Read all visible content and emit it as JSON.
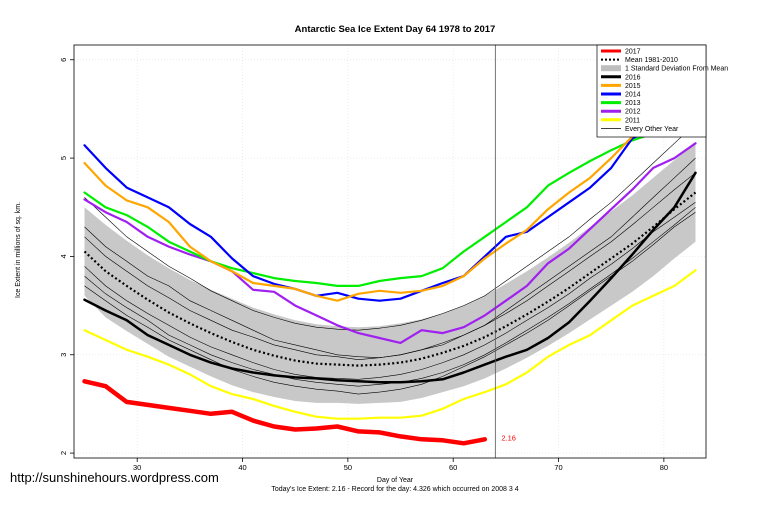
{
  "credit": "http://sunshinehours.wordpress.com",
  "chart_data": {
    "type": "line",
    "title": "Antarctic Sea Ice Extent Day 64 1978 to 2017",
    "xlabel": "Day of Year",
    "ylabel": "Ice Extent in millions of sq. km.",
    "footer": "Today's Ice Extent: 2.16  - Record for the day: 4.326 which occurred on 2008 3 4",
    "xlim": [
      24,
      84
    ],
    "ylim": [
      1.95,
      6.15
    ],
    "xticks": [
      30,
      40,
      50,
      60,
      70,
      80
    ],
    "yticks": [
      2,
      3,
      4,
      5,
      6
    ],
    "grid": true,
    "vline_x": 64,
    "end_label": "2.16",
    "legend_position": "top-right",
    "legend": [
      {
        "label": "2017",
        "color": "#ff0000",
        "style": "thick"
      },
      {
        "label": "Mean 1981-2010",
        "color": "#000000",
        "style": "dotted"
      },
      {
        "label": "1 Standard Deviation From Mean",
        "color": "#bebebe",
        "style": "band"
      },
      {
        "label": "2016",
        "color": "#000000",
        "style": "thick"
      },
      {
        "label": "2015",
        "color": "#ffa500",
        "style": "thick"
      },
      {
        "label": "2014",
        "color": "#0000ff",
        "style": "thick"
      },
      {
        "label": "2013",
        "color": "#00ee00",
        "style": "thick"
      },
      {
        "label": "2012",
        "color": "#a020f0",
        "style": "thick"
      },
      {
        "label": "2011",
        "color": "#ffff00",
        "style": "thick"
      },
      {
        "label": "Every Other Year",
        "color": "#000000",
        "style": "thin"
      }
    ],
    "x": [
      25,
      27,
      29,
      31,
      33,
      35,
      37,
      39,
      41,
      43,
      45,
      47,
      49,
      51,
      53,
      55,
      57,
      59,
      61,
      63,
      65,
      67,
      69,
      71,
      73,
      75,
      77,
      79,
      81,
      83
    ],
    "mean": [
      4.05,
      3.85,
      3.7,
      3.56,
      3.43,
      3.32,
      3.22,
      3.13,
      3.05,
      2.99,
      2.94,
      2.91,
      2.9,
      2.89,
      2.9,
      2.92,
      2.96,
      3.02,
      3.09,
      3.18,
      3.29,
      3.41,
      3.54,
      3.68,
      3.83,
      3.98,
      4.13,
      4.3,
      4.48,
      4.65
    ],
    "sd_upper": [
      4.5,
      4.32,
      4.16,
      4.01,
      3.88,
      3.76,
      3.66,
      3.57,
      3.48,
      3.41,
      3.35,
      3.31,
      3.29,
      3.28,
      3.29,
      3.32,
      3.36,
      3.42,
      3.5,
      3.6,
      3.72,
      3.85,
      3.99,
      4.14,
      4.3,
      4.46,
      4.62,
      4.8,
      4.98,
      5.15
    ],
    "sd_lower": [
      3.6,
      3.38,
      3.24,
      3.11,
      2.98,
      2.88,
      2.78,
      2.69,
      2.62,
      2.57,
      2.53,
      2.51,
      2.51,
      2.5,
      2.51,
      2.52,
      2.56,
      2.62,
      2.68,
      2.76,
      2.86,
      2.97,
      3.09,
      3.22,
      3.36,
      3.5,
      3.64,
      3.8,
      3.98,
      4.15
    ],
    "series": [
      {
        "name": "2017",
        "color": "#ff0000",
        "width": 4.5,
        "values": [
          2.73,
          2.68,
          2.52,
          2.49,
          2.46,
          2.43,
          2.4,
          2.42,
          2.33,
          2.27,
          2.24,
          2.25,
          2.27,
          2.22,
          2.21,
          2.17,
          2.14,
          2.13,
          2.1,
          2.14,
          null,
          null,
          null,
          null,
          null,
          null,
          null,
          null,
          null,
          null
        ]
      },
      {
        "name": "2016",
        "color": "#000000",
        "width": 2.5,
        "values": [
          3.56,
          3.45,
          3.35,
          3.2,
          3.1,
          3.0,
          2.92,
          2.86,
          2.82,
          2.79,
          2.77,
          2.76,
          2.74,
          2.73,
          2.72,
          2.72,
          2.73,
          2.75,
          2.82,
          2.9,
          2.98,
          3.05,
          3.17,
          3.33,
          3.55,
          3.78,
          4.02,
          4.27,
          4.5,
          4.85
        ]
      },
      {
        "name": "2015",
        "color": "#ffa500",
        "width": 2.2,
        "values": [
          4.95,
          4.72,
          4.57,
          4.5,
          4.35,
          4.1,
          3.95,
          3.85,
          3.73,
          3.7,
          3.67,
          3.6,
          3.55,
          3.62,
          3.65,
          3.63,
          3.65,
          3.7,
          3.8,
          3.98,
          4.13,
          4.27,
          4.48,
          4.65,
          4.8,
          5.0,
          5.22,
          5.35,
          5.5,
          5.75
        ]
      },
      {
        "name": "2014",
        "color": "#0000ff",
        "width": 2.2,
        "values": [
          5.13,
          4.9,
          4.7,
          4.6,
          4.5,
          4.33,
          4.2,
          3.98,
          3.8,
          3.72,
          3.67,
          3.6,
          3.63,
          3.57,
          3.55,
          3.57,
          3.65,
          3.73,
          3.8,
          4.0,
          4.2,
          4.25,
          4.4,
          4.55,
          4.7,
          4.9,
          5.2,
          5.3,
          5.45,
          5.62
        ]
      },
      {
        "name": "2013",
        "color": "#00ee00",
        "width": 2.2,
        "values": [
          4.65,
          4.5,
          4.42,
          4.3,
          4.15,
          4.05,
          3.95,
          3.88,
          3.83,
          3.78,
          3.75,
          3.73,
          3.7,
          3.7,
          3.75,
          3.78,
          3.8,
          3.88,
          4.05,
          4.2,
          4.35,
          4.5,
          4.72,
          4.85,
          4.97,
          5.08,
          5.18,
          5.25,
          5.4,
          5.58
        ]
      },
      {
        "name": "2012",
        "color": "#a020f0",
        "width": 2.2,
        "values": [
          4.58,
          4.45,
          4.35,
          4.2,
          4.1,
          4.02,
          3.95,
          3.85,
          3.66,
          3.64,
          3.5,
          3.4,
          3.3,
          3.22,
          3.17,
          3.12,
          3.25,
          3.22,
          3.28,
          3.4,
          3.55,
          3.7,
          3.93,
          4.08,
          4.28,
          4.48,
          4.68,
          4.9,
          5.0,
          5.15
        ]
      },
      {
        "name": "2011",
        "color": "#ffff00",
        "width": 2.2,
        "values": [
          3.25,
          3.15,
          3.05,
          2.98,
          2.9,
          2.8,
          2.68,
          2.6,
          2.55,
          2.48,
          2.42,
          2.37,
          2.35,
          2.35,
          2.36,
          2.36,
          2.38,
          2.45,
          2.55,
          2.62,
          2.7,
          2.82,
          2.98,
          3.1,
          3.2,
          3.35,
          3.5,
          3.6,
          3.7,
          3.86
        ]
      }
    ],
    "every_other_year": [
      [
        4.3,
        4.1,
        3.95,
        3.8,
        3.7,
        3.55,
        3.45,
        3.35,
        3.25,
        3.15,
        3.1,
        3.05,
        3.0,
        2.98,
        2.97,
        3.0,
        3.05,
        3.1,
        3.2,
        3.3,
        3.45,
        3.6,
        3.75,
        3.9,
        4.05,
        4.2,
        4.4,
        4.6,
        4.8,
        5.0
      ],
      [
        3.9,
        3.7,
        3.55,
        3.42,
        3.3,
        3.18,
        3.08,
        3.0,
        2.92,
        2.85,
        2.8,
        2.77,
        2.76,
        2.75,
        2.77,
        2.8,
        2.85,
        2.92,
        3.0,
        3.1,
        3.22,
        3.35,
        3.48,
        3.62,
        3.78,
        3.92,
        4.08,
        4.25,
        4.4,
        4.55
      ],
      [
        4.6,
        4.4,
        4.2,
        4.05,
        3.9,
        3.78,
        3.65,
        3.55,
        3.45,
        3.38,
        3.32,
        3.28,
        3.26,
        3.25,
        3.27,
        3.3,
        3.35,
        3.42,
        3.5,
        3.6,
        3.75,
        3.9,
        4.05,
        4.2,
        4.38,
        4.55,
        4.75,
        4.95,
        5.15,
        5.35
      ],
      [
        3.7,
        3.55,
        3.4,
        3.28,
        3.15,
        3.05,
        2.95,
        2.85,
        2.78,
        2.72,
        2.68,
        2.65,
        2.63,
        2.6,
        2.62,
        2.65,
        2.7,
        2.78,
        2.88,
        2.98,
        3.1,
        3.22,
        3.35,
        3.5,
        3.65,
        3.8,
        3.95,
        4.12,
        4.3,
        4.45
      ],
      [
        4.2,
        4.0,
        3.85,
        3.7,
        3.58,
        3.45,
        3.35,
        3.25,
        3.18,
        3.1,
        3.05,
        3.0,
        2.98,
        2.95,
        2.97,
        3.0,
        3.05,
        3.12,
        3.2,
        3.3,
        3.42,
        3.55,
        3.7,
        3.85,
        4.0,
        4.15,
        4.32,
        4.5,
        4.68,
        4.85
      ],
      [
        3.8,
        3.62,
        3.48,
        3.35,
        3.2,
        3.1,
        3.0,
        2.92,
        2.85,
        2.8,
        2.75,
        2.72,
        2.7,
        2.68,
        2.7,
        2.72,
        2.76,
        2.82,
        2.9,
        3.0,
        3.12,
        3.25,
        3.38,
        3.52,
        3.67,
        3.82,
        3.98,
        4.15,
        4.32,
        4.5
      ]
    ]
  }
}
